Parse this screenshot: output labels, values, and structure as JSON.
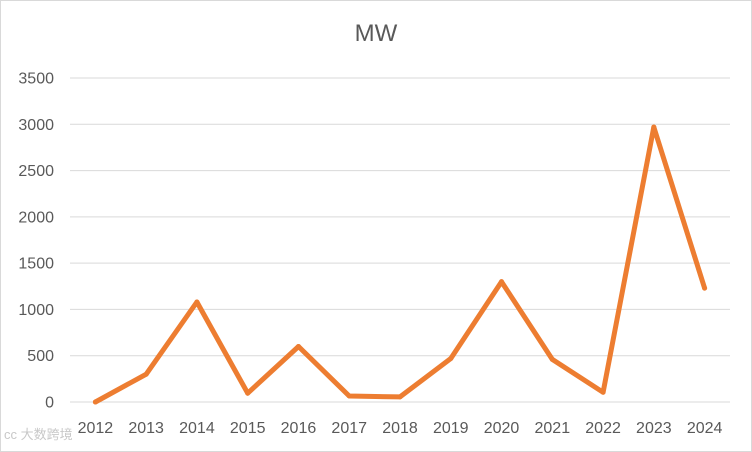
{
  "chart_data": {
    "type": "line",
    "title": "MW",
    "xlabel": "",
    "ylabel": "",
    "categories": [
      "2012",
      "2013",
      "2014",
      "2015",
      "2016",
      "2017",
      "2018",
      "2019",
      "2020",
      "2021",
      "2022",
      "2023",
      "2024"
    ],
    "series": [
      {
        "values": [
          0,
          300,
          1080,
          95,
          600,
          65,
          55,
          470,
          1300,
          460,
          105,
          2970,
          1230
        ],
        "color": "#ed7d31"
      }
    ],
    "ylim": [
      0,
      3500
    ],
    "yticks": [
      0,
      500,
      1000,
      1500,
      2000,
      2500,
      3000,
      3500
    ],
    "grid": true,
    "legend": "none"
  },
  "watermark": {
    "text": "cc 大数跨境"
  }
}
